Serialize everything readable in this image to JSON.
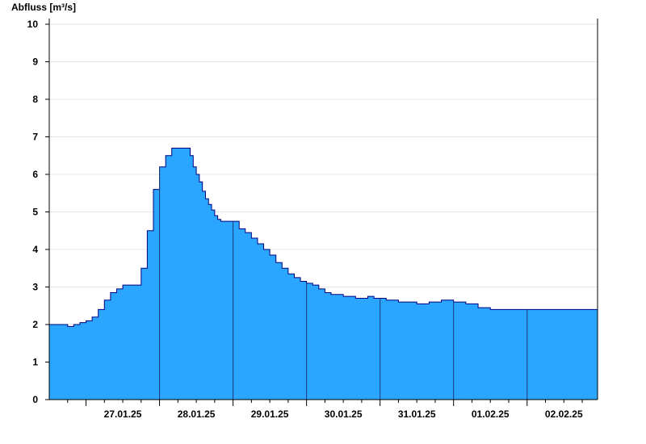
{
  "chart_data": {
    "type": "area",
    "title": "",
    "xlabel": "",
    "ylabel": "Abfluss [m³/s]",
    "ylim": [
      0,
      10
    ],
    "yticks": [
      0,
      1,
      2,
      3,
      4,
      5,
      6,
      7,
      8,
      9,
      10
    ],
    "xlim": [
      "2025-01-26T12:00",
      "2025-02-02T23:00"
    ],
    "x_tick_labels": [
      "27.01.25",
      "28.01.25",
      "29.01.25",
      "30.01.25",
      "31.01.25",
      "01.02.25",
      "02.02.25"
    ],
    "grid": true,
    "fill_color": "#2aa6ff",
    "line_color": "#000080",
    "series": [
      {
        "x": [
          "2025-01-26T12:00",
          "2025-01-26T16:00",
          "2025-01-26T18:00",
          "2025-01-26T20:00",
          "2025-01-26T22:00",
          "2025-01-27T00:00",
          "2025-01-27T02:00",
          "2025-01-27T04:00",
          "2025-01-27T06:00",
          "2025-01-27T08:00",
          "2025-01-27T10:00",
          "2025-01-27T12:00",
          "2025-01-27T14:00",
          "2025-01-27T16:00",
          "2025-01-27T18:00",
          "2025-01-27T20:00",
          "2025-01-27T22:00",
          "2025-01-28T00:00",
          "2025-01-28T02:00",
          "2025-01-28T04:00",
          "2025-01-28T06:00",
          "2025-01-28T08:00",
          "2025-01-28T10:00",
          "2025-01-28T11:00",
          "2025-01-28T12:00",
          "2025-01-28T13:00",
          "2025-01-28T14:00",
          "2025-01-28T15:00",
          "2025-01-28T16:00",
          "2025-01-28T17:00",
          "2025-01-28T18:00",
          "2025-01-28T19:00",
          "2025-01-28T20:00",
          "2025-01-29T02:00",
          "2025-01-29T04:00",
          "2025-01-29T06:00",
          "2025-01-29T08:00",
          "2025-01-29T10:00",
          "2025-01-29T12:00",
          "2025-01-29T14:00",
          "2025-01-29T16:00",
          "2025-01-29T18:00",
          "2025-01-29T20:00",
          "2025-01-29T22:00",
          "2025-01-30T00:00",
          "2025-01-30T02:00",
          "2025-01-30T04:00",
          "2025-01-30T06:00",
          "2025-01-30T08:00",
          "2025-01-30T10:00",
          "2025-01-30T12:00",
          "2025-01-30T14:00",
          "2025-01-30T16:00",
          "2025-01-30T18:00",
          "2025-01-30T20:00",
          "2025-01-30T22:00",
          "2025-01-31T00:00",
          "2025-01-31T02:00",
          "2025-01-31T04:00",
          "2025-01-31T06:00",
          "2025-01-31T08:00",
          "2025-01-31T12:00",
          "2025-01-31T16:00",
          "2025-01-31T20:00",
          "2025-02-01T00:00",
          "2025-02-01T04:00",
          "2025-02-01T08:00",
          "2025-02-01T12:00",
          "2025-02-01T16:00",
          "2025-02-01T20:00",
          "2025-02-02T00:00",
          "2025-02-02T04:00",
          "2025-02-02T08:00",
          "2025-02-02T12:00",
          "2025-02-02T16:00",
          "2025-02-02T20:00",
          "2025-02-02T23:00"
        ],
        "values": [
          2.0,
          2.0,
          1.95,
          2.0,
          2.05,
          2.1,
          2.2,
          2.4,
          2.65,
          2.85,
          2.95,
          3.05,
          3.05,
          3.05,
          3.5,
          4.5,
          5.6,
          6.2,
          6.5,
          6.7,
          6.7,
          6.7,
          6.5,
          6.2,
          6.0,
          5.8,
          5.55,
          5.35,
          5.2,
          5.05,
          4.9,
          4.8,
          4.75,
          4.55,
          4.45,
          4.3,
          4.15,
          4.0,
          3.85,
          3.65,
          3.5,
          3.35,
          3.25,
          3.15,
          3.1,
          3.05,
          2.95,
          2.85,
          2.8,
          2.8,
          2.75,
          2.75,
          2.7,
          2.7,
          2.75,
          2.7,
          2.7,
          2.65,
          2.65,
          2.6,
          2.6,
          2.55,
          2.6,
          2.65,
          2.6,
          2.55,
          2.45,
          2.4,
          2.4,
          2.4,
          2.4,
          2.4,
          2.4,
          2.4,
          2.4,
          2.4,
          2.4
        ]
      }
    ]
  }
}
